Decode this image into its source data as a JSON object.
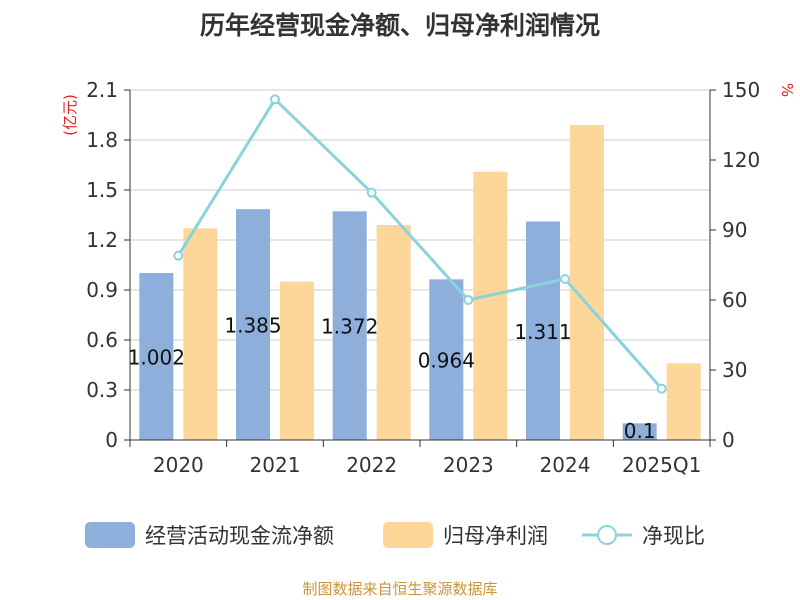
{
  "colors": {
    "bar_cash": "#8EAEDC",
    "bar_profit": "#FDD69A",
    "line": "#8BD3DB",
    "axis": "#333333",
    "grid": "#CCCCCC",
    "unit_red": "#E02020",
    "footer": "#C8963C",
    "label": "#111111"
  },
  "chart_data": {
    "type": "bar",
    "title": "历年经营现金净额、归母净利润情况",
    "categories": [
      "2020",
      "2021",
      "2022",
      "2023",
      "2024",
      "2025Q1"
    ],
    "series": [
      {
        "name": "经营活动现金流净额",
        "kind": "bar",
        "axis": "left",
        "values": [
          1.002,
          1.385,
          1.372,
          0.964,
          1.311,
          0.1
        ],
        "labels": [
          "1.002",
          "1.385",
          "1.372",
          "0.964",
          "1.311",
          "0.1"
        ]
      },
      {
        "name": "归母净利润",
        "kind": "bar",
        "axis": "left",
        "values": [
          1.27,
          0.95,
          1.29,
          1.61,
          1.89,
          0.46
        ]
      },
      {
        "name": "净现比",
        "kind": "line",
        "axis": "right",
        "values": [
          79,
          146,
          106,
          60,
          69,
          22
        ]
      }
    ],
    "left_axis": {
      "label": "(亿元)",
      "min": 0,
      "max": 2.1,
      "ticks": [
        "0",
        "0.3",
        "0.6",
        "0.9",
        "1.2",
        "1.5",
        "1.8",
        "2.1"
      ]
    },
    "right_axis": {
      "label": "%",
      "min": 0,
      "max": 150,
      "ticks": [
        "0",
        "30",
        "60",
        "90",
        "120",
        "150"
      ]
    },
    "grid": true,
    "legend_position": "bottom"
  },
  "footer": {
    "text": "制图数据来自恒生聚源数据库"
  }
}
